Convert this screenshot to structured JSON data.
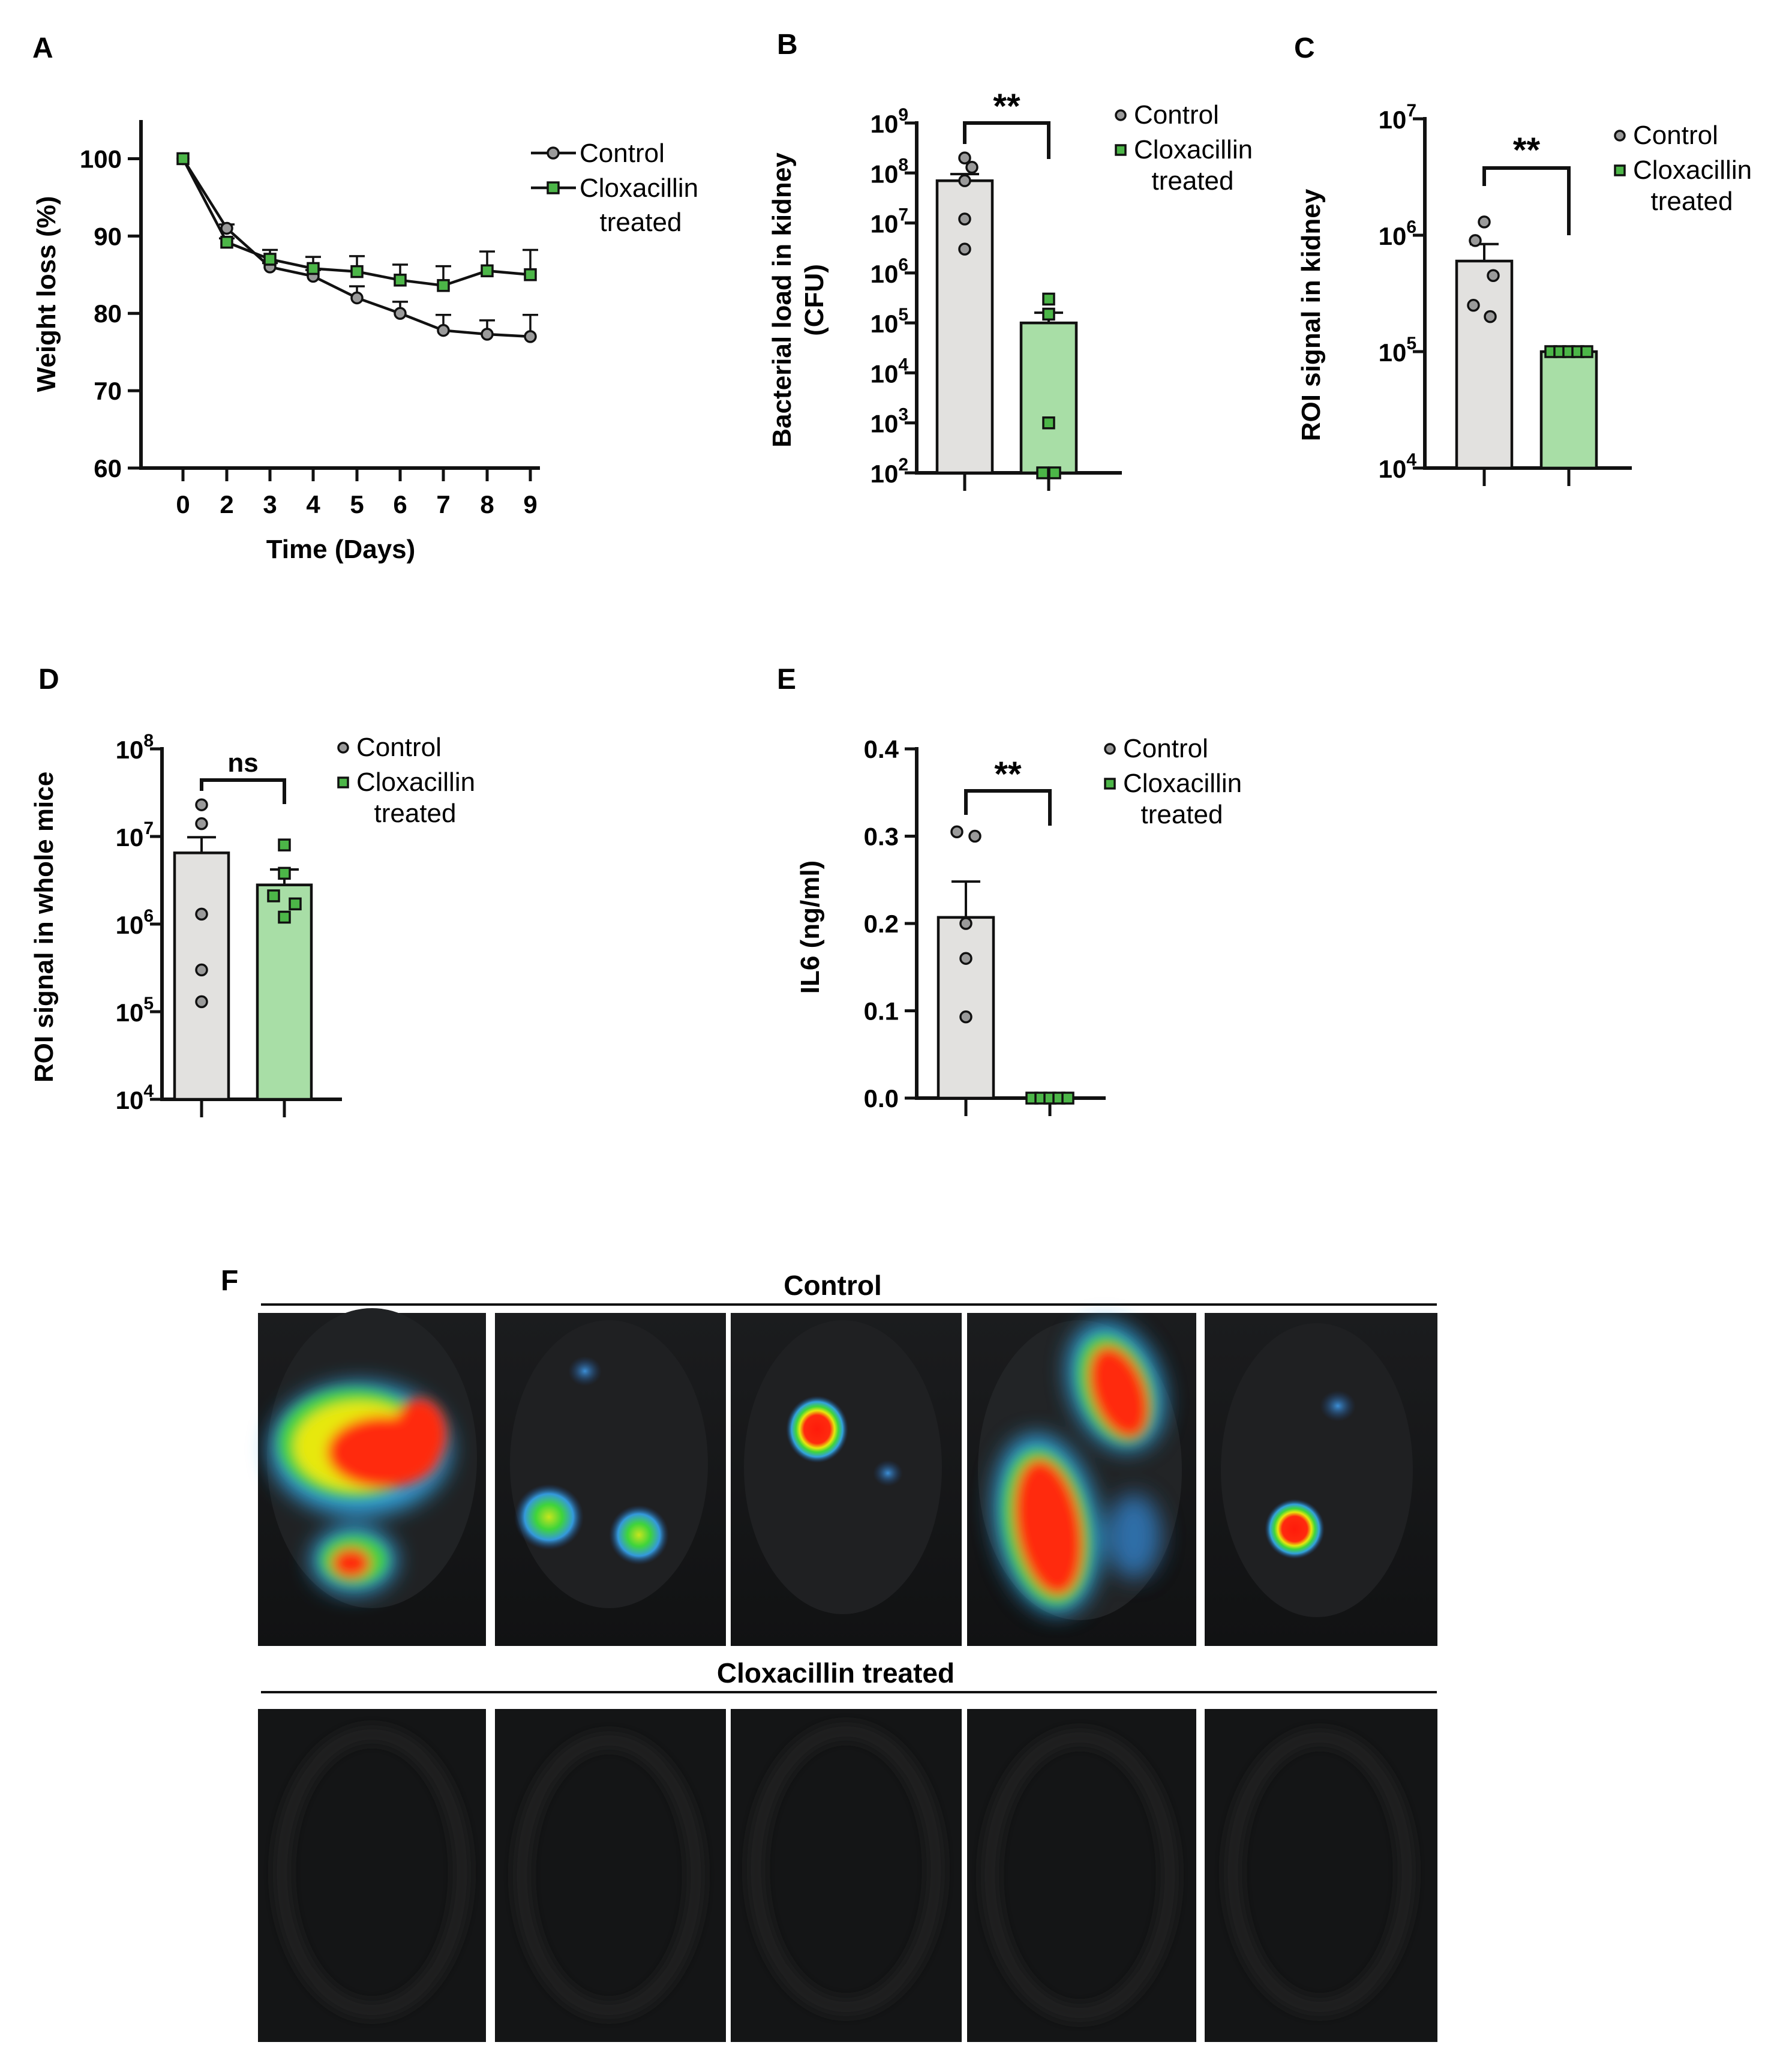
{
  "colors": {
    "control": "#e2e1df",
    "control_point": "#9a9a9a",
    "treated": "#a8dea6",
    "treated_point": "#4cb648",
    "axis": "#111111",
    "image_background": "#141516"
  },
  "chart_data": [
    {
      "panel": "A",
      "type": "line",
      "xlabel": "Time (Days)",
      "ylabel": "Weight loss (%)",
      "x": [
        0,
        2,
        3,
        4,
        5,
        6,
        7,
        8,
        9
      ],
      "xticks": [
        "0",
        "2",
        "3",
        "4",
        "5",
        "6",
        "7",
        "8",
        "9"
      ],
      "ylim": [
        60,
        105
      ],
      "yticks": [
        60,
        70,
        80,
        90,
        100
      ],
      "legend_position": "top-right",
      "series": [
        {
          "name": "Control",
          "marker": "circle",
          "values": [
            100,
            91,
            86,
            84.8,
            82,
            80,
            77.8,
            77.3,
            77
          ],
          "error": [
            0,
            0.5,
            0.5,
            0.8,
            1.5,
            1.5,
            2.0,
            1.8,
            2.8
          ]
        },
        {
          "name": "Cloxacillin treated",
          "marker": "square",
          "values": [
            100,
            89.2,
            87,
            85.8,
            85.4,
            84.3,
            83.6,
            85.5,
            85
          ],
          "error": [
            0,
            0.5,
            1.2,
            1.5,
            2.0,
            2.0,
            2.5,
            2.5,
            3.2
          ]
        }
      ]
    },
    {
      "panel": "B",
      "type": "bar",
      "scale": "log",
      "ylabel_lines": [
        "Bacterial load in kidney",
        "(CFU)"
      ],
      "ylim_exp": [
        2,
        9
      ],
      "ytick_exp": [
        "2",
        "3",
        "4",
        "5",
        "6",
        "7",
        "8",
        "9"
      ],
      "categories": [
        "Control",
        "Cloxacillin treated"
      ],
      "values": [
        70000000,
        100000
      ],
      "error": [
        95000000,
        160000
      ],
      "points": [
        [
          200000000,
          130000000,
          70000000,
          12000000,
          3000000
        ],
        [
          300000,
          150000,
          1000,
          100,
          100
        ]
      ],
      "significance": "**",
      "legend": [
        "Control",
        "Cloxacillin",
        "treated"
      ]
    },
    {
      "panel": "C",
      "type": "bar",
      "scale": "log",
      "ylabel": "ROI signal in kidney",
      "ylim_exp": [
        4,
        7
      ],
      "ytick_exp": [
        "4",
        "5",
        "6",
        "7"
      ],
      "categories": [
        "Control",
        "Cloxacillin treated"
      ],
      "values": [
        600000,
        100000
      ],
      "error": [
        840000,
        100000
      ],
      "points": [
        [
          1300000,
          900000,
          450000,
          250000,
          200000
        ],
        [
          100000,
          100000,
          100000,
          100000,
          100000
        ]
      ],
      "significance": "**",
      "legend": [
        "Control",
        "Cloxacillin",
        "treated"
      ]
    },
    {
      "panel": "D",
      "type": "bar",
      "scale": "log",
      "ylabel": "ROI signal in whole mice",
      "ylim_exp": [
        4,
        8
      ],
      "ytick_exp": [
        "4",
        "5",
        "6",
        "7",
        "8"
      ],
      "categories": [
        "Control",
        "Cloxacillin treated"
      ],
      "values": [
        6500000,
        2800000
      ],
      "error": [
        9800000,
        4200000
      ],
      "points": [
        [
          23000000,
          14000000,
          1300000,
          300000,
          130000
        ],
        [
          8000000,
          3800000,
          2100000,
          1700000,
          1200000
        ]
      ],
      "significance": "ns",
      "legend": [
        "Control",
        "Cloxacillin",
        "treated"
      ]
    },
    {
      "panel": "E",
      "type": "bar",
      "scale": "linear",
      "ylabel": "IL6 (ng/ml)",
      "ylim": [
        0,
        0.4
      ],
      "yticks": [
        "0.0",
        "0.1",
        "0.2",
        "0.3",
        "0.4"
      ],
      "categories": [
        "Control",
        "Cloxacillin treated"
      ],
      "values": [
        0.207,
        0.0
      ],
      "error": [
        0.248,
        0.0
      ],
      "points": [
        [
          0.305,
          0.3,
          0.2,
          0.16,
          0.093
        ],
        [
          0,
          0,
          0,
          0,
          0
        ]
      ],
      "significance": "**",
      "legend": [
        "Control",
        "Cloxacillin",
        "treated"
      ]
    }
  ],
  "panel_f": {
    "letter": "F",
    "top_group_title": "Control",
    "bottom_group_title": "Cloxacillin treated"
  }
}
